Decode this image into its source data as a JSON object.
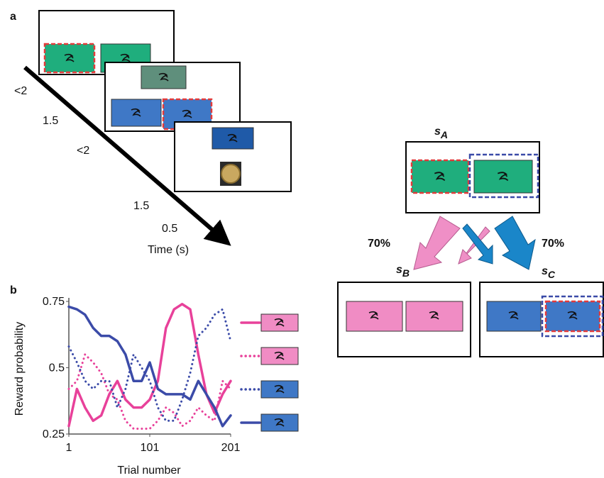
{
  "panel_labels": [
    "a",
    "b"
  ],
  "timeline_labels": [
    "<2",
    "1.5",
    "<2",
    "1.5",
    "0.5"
  ],
  "time_label": "Time (s)",
  "states": [
    {
      "label": "s",
      "subscript": "A"
    },
    {
      "label": "s",
      "subscript": "B"
    },
    {
      "label": "s",
      "subscript": "C"
    }
  ],
  "transition_labels": [
    "70%",
    "70%"
  ],
  "chart_data": {
    "type": "line",
    "xlabel": "Trial number",
    "ylabel": "Reward probability",
    "x": [
      1,
      11,
      21,
      31,
      41,
      51,
      61,
      71,
      81,
      91,
      101,
      111,
      121,
      131,
      141,
      151,
      161,
      171,
      181,
      191,
      201
    ],
    "xlim": [
      1,
      201
    ],
    "xticks": [
      1,
      101,
      201
    ],
    "ylim": [
      0.25,
      0.75
    ],
    "yticks": [
      0.25,
      0.5,
      0.75
    ],
    "series": [
      {
        "color": "#e8419a",
        "style": "solid",
        "legend_fill": "#f08cc4",
        "values": [
          0.28,
          0.42,
          0.35,
          0.3,
          0.32,
          0.4,
          0.45,
          0.38,
          0.35,
          0.35,
          0.38,
          0.45,
          0.65,
          0.72,
          0.74,
          0.72,
          0.55,
          0.4,
          0.33,
          0.4,
          0.45
        ]
      },
      {
        "color": "#e8419a",
        "style": "dotted",
        "legend_fill": "#f08cc4",
        "values": [
          0.42,
          0.45,
          0.55,
          0.52,
          0.48,
          0.4,
          0.38,
          0.3,
          0.27,
          0.27,
          0.27,
          0.3,
          0.35,
          0.33,
          0.28,
          0.3,
          0.35,
          0.32,
          0.3,
          0.45,
          0.42
        ]
      },
      {
        "color": "#3b4ba8",
        "style": "dotted",
        "legend_fill": "#3f78c6",
        "values": [
          0.58,
          0.52,
          0.45,
          0.42,
          0.45,
          0.45,
          0.35,
          0.42,
          0.55,
          0.5,
          0.45,
          0.35,
          0.3,
          0.3,
          0.38,
          0.48,
          0.62,
          0.65,
          0.7,
          0.72,
          0.6
        ]
      },
      {
        "color": "#3b4ba8",
        "style": "solid",
        "legend_fill": "#3f78c6",
        "values": [
          0.73,
          0.72,
          0.7,
          0.65,
          0.62,
          0.62,
          0.6,
          0.55,
          0.45,
          0.45,
          0.52,
          0.42,
          0.4,
          0.4,
          0.4,
          0.38,
          0.45,
          0.4,
          0.35,
          0.28,
          0.32
        ]
      }
    ]
  }
}
